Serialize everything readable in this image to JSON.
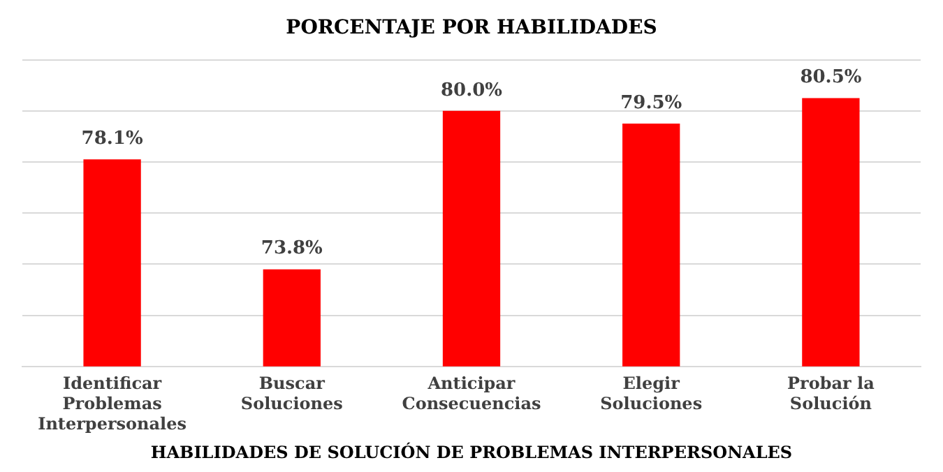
{
  "chart_data": {
    "type": "bar",
    "title": "PORCENTAJE POR HABILIDADES",
    "xlabel": "HABILIDADES DE SOLUCIÓN DE PROBLEMAS INTERPERSONALES",
    "categories": [
      "Identificar Problemas Interpersonales",
      "Buscar Soluciones",
      "Anticipar Consecuencias",
      "Elegir Soluciones",
      "Probar la Solución"
    ],
    "values": [
      78.1,
      73.8,
      80.0,
      79.5,
      80.5
    ],
    "value_labels": [
      "78.1%",
      "73.8%",
      "80.0%",
      "79.5%",
      "80.5%"
    ],
    "color": "#ff0000",
    "ylim": [
      70,
      82
    ],
    "yticks": [
      {
        "value": 70,
        "label": null
      },
      {
        "value": 72,
        "label": null
      },
      {
        "value": 74,
        "label": null
      },
      {
        "value": 76,
        "label": null
      },
      {
        "value": 78,
        "label": null
      },
      {
        "value": 80,
        "label": null
      },
      {
        "value": 82,
        "label": null
      }
    ],
    "grid": "y",
    "tick_labels": "x",
    "legend": false
  }
}
